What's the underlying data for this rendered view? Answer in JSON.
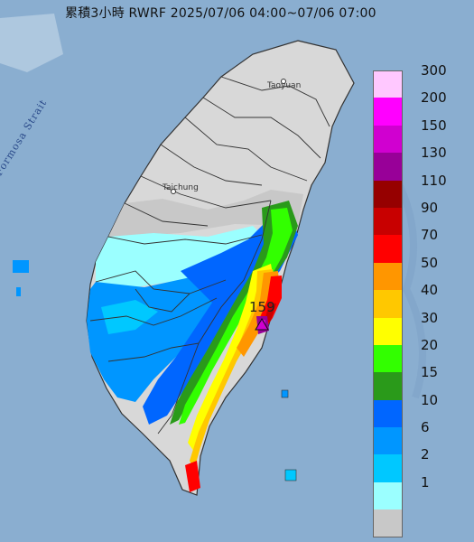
{
  "header": {
    "title": "累積3小時 RWRF 2025/07/06 04:00~07/06 07:00"
  },
  "map": {
    "strait_label": "Formosa Strait",
    "cities": [
      {
        "name": "Taoyuan"
      },
      {
        "name": "Taichung"
      }
    ],
    "max_value_label": "159",
    "colors": {
      "sea": "#8aaed0",
      "land_no_rain": "#d8d8d8",
      "border": "#333333"
    }
  },
  "legend": {
    "items": [
      {
        "label": "300",
        "color": "#ffc8ff"
      },
      {
        "label": "200",
        "color": "#ff00ff"
      },
      {
        "label": "150",
        "color": "#d000d0"
      },
      {
        "label": "130",
        "color": "#980098"
      },
      {
        "label": "110",
        "color": "#960000"
      },
      {
        "label": "90",
        "color": "#c80000"
      },
      {
        "label": "70",
        "color": "#ff0000"
      },
      {
        "label": "50",
        "color": "#ff9600"
      },
      {
        "label": "40",
        "color": "#ffc800"
      },
      {
        "label": "30",
        "color": "#ffff00"
      },
      {
        "label": "20",
        "color": "#32ff00"
      },
      {
        "label": "15",
        "color": "#2a9a1a"
      },
      {
        "label": "10",
        "color": "#0066ff"
      },
      {
        "label": "6",
        "color": "#0096ff"
      },
      {
        "label": "2",
        "color": "#00c8ff"
      },
      {
        "label": "1",
        "color": "#9bffff"
      },
      {
        "label": "",
        "color": "#c8c8c8"
      }
    ]
  }
}
